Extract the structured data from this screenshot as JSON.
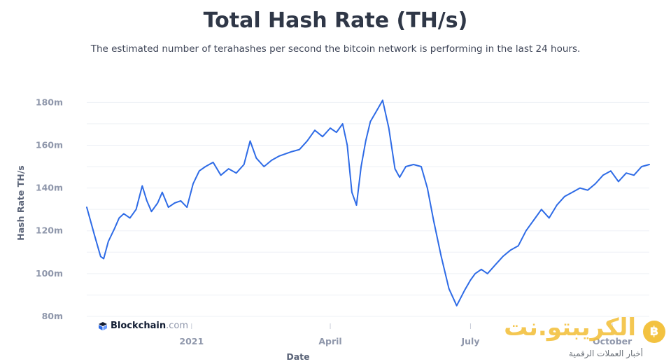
{
  "chart_data": {
    "type": "line",
    "title": "Total Hash Rate (TH/s)",
    "subtitle": "The estimated number of terahashes per second the bitcoin network is performing in the last 24 hours.",
    "xlabel": "Date",
    "ylabel": "Hash Rate TH/s",
    "x_tick_labels": [
      "2021",
      "April",
      "July",
      "October"
    ],
    "y_tick_labels": [
      "80m",
      "100m",
      "120m",
      "140m",
      "160m",
      "180m"
    ],
    "ylim": [
      80,
      186
    ],
    "xlim": [
      "2020-10-25",
      "2021-10-25"
    ],
    "grid": true,
    "line_color": "#2e6be6",
    "series": [
      {
        "name": "",
        "x": [
          "2020-10-25",
          "2020-10-30",
          "2020-11-03",
          "2020-11-05",
          "2020-11-08",
          "2020-11-12",
          "2020-11-15",
          "2020-11-18",
          "2020-11-22",
          "2020-11-26",
          "2020-11-30",
          "2020-12-03",
          "2020-12-06",
          "2020-12-10",
          "2020-12-13",
          "2020-12-17",
          "2020-12-21",
          "2020-12-25",
          "2020-12-29",
          "2021-01-02",
          "2021-01-06",
          "2021-01-10",
          "2021-01-15",
          "2021-01-20",
          "2021-01-25",
          "2021-01-30",
          "2021-02-04",
          "2021-02-08",
          "2021-02-12",
          "2021-02-17",
          "2021-02-22",
          "2021-02-27",
          "2021-03-03",
          "2021-03-07",
          "2021-03-12",
          "2021-03-17",
          "2021-03-22",
          "2021-03-27",
          "2021-04-01",
          "2021-04-05",
          "2021-04-09",
          "2021-04-12",
          "2021-04-15",
          "2021-04-18",
          "2021-04-21",
          "2021-04-24",
          "2021-04-27",
          "2021-05-01",
          "2021-05-05",
          "2021-05-09",
          "2021-05-13",
          "2021-05-16",
          "2021-05-20",
          "2021-05-25",
          "2021-05-30",
          "2021-06-03",
          "2021-06-07",
          "2021-06-12",
          "2021-06-17",
          "2021-06-22",
          "2021-06-27",
          "2021-07-01",
          "2021-07-04",
          "2021-07-08",
          "2021-07-12",
          "2021-07-17",
          "2021-07-22",
          "2021-07-27",
          "2021-08-01",
          "2021-08-06",
          "2021-08-11",
          "2021-08-16",
          "2021-08-21",
          "2021-08-26",
          "2021-08-31",
          "2021-09-05",
          "2021-09-10",
          "2021-09-15",
          "2021-09-20",
          "2021-09-25",
          "2021-09-30",
          "2021-10-05",
          "2021-10-10",
          "2021-10-15",
          "2021-10-20",
          "2021-10-25"
        ],
        "values": [
          131,
          118,
          108,
          107,
          115,
          121,
          126,
          128,
          126,
          130,
          141,
          134,
          129,
          133,
          138,
          131,
          133,
          134,
          131,
          142,
          148,
          150,
          152,
          146,
          149,
          147,
          151,
          162,
          154,
          150,
          153,
          155,
          156,
          157,
          158,
          162,
          167,
          164,
          168,
          166,
          170,
          160,
          138,
          132,
          150,
          162,
          171,
          176,
          181,
          168,
          149,
          145,
          150,
          151,
          150,
          140,
          125,
          108,
          93,
          85,
          92,
          97,
          100,
          102,
          100,
          104,
          108,
          111,
          113,
          120,
          125,
          130,
          126,
          132,
          136,
          138,
          140,
          139,
          142,
          146,
          148,
          143,
          147,
          146,
          150,
          151
        ]
      }
    ]
  },
  "brand": {
    "name": "Blockchain",
    "suffix": ".com"
  },
  "watermark": {
    "name": "الكريبتو.نت",
    "tagline": "أخبار العملات الرقمية",
    "coin_symbol": "฿"
  },
  "colors": {
    "title": "#2f3747",
    "line": "#2e6be6",
    "grid": "#edf0f5",
    "axis_text": "#8f97ab",
    "watermark": "#f3c240"
  }
}
